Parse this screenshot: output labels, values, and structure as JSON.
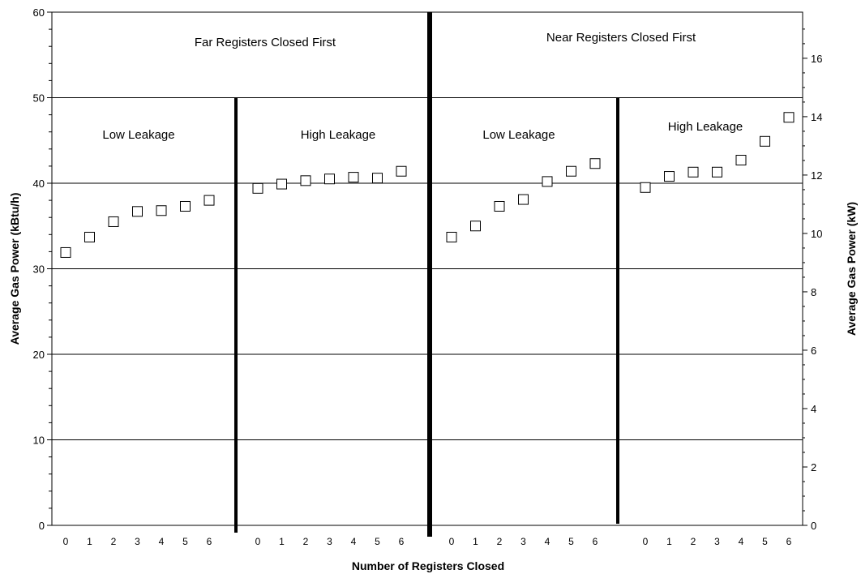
{
  "chart_data": {
    "type": "scatter",
    "xlabel": "Number of Registers Closed",
    "ylabel": "Average Gas Power (kBtu/h)",
    "ylabel_right": "Average Gas Power (kW)",
    "ylim": [
      0,
      60
    ],
    "yticks": [
      0,
      10,
      20,
      30,
      40,
      50,
      60
    ],
    "ylim_right": [
      0,
      17.58
    ],
    "yticks_right": [
      0,
      2,
      4,
      6,
      8,
      10,
      12,
      14,
      16
    ],
    "grid": true,
    "marker": "hollow-square",
    "groups": [
      {
        "title": "Far Registers Closed First",
        "series": [
          {
            "label": "Low Leakage",
            "x": [
              0,
              1,
              2,
              3,
              4,
              5,
              6
            ],
            "values": [
              31.9,
              33.7,
              35.5,
              36.7,
              36.8,
              37.3,
              38.0
            ]
          },
          {
            "label": "High Leakage",
            "x": [
              0,
              1,
              2,
              3,
              4,
              5,
              6
            ],
            "values": [
              39.4,
              39.9,
              40.3,
              40.5,
              40.7,
              40.6,
              41.4
            ]
          }
        ]
      },
      {
        "title": "Near Registers Closed First",
        "series": [
          {
            "label": "Low Leakage",
            "x": [
              0,
              1,
              2,
              3,
              4,
              5,
              6
            ],
            "values": [
              33.7,
              35.0,
              37.3,
              38.1,
              40.2,
              41.4,
              42.3
            ]
          },
          {
            "label": "High Leakage",
            "x": [
              0,
              1,
              2,
              3,
              4,
              5,
              6
            ],
            "values": [
              39.5,
              40.8,
              41.3,
              41.3,
              42.7,
              44.9,
              47.7
            ]
          }
        ]
      }
    ]
  }
}
